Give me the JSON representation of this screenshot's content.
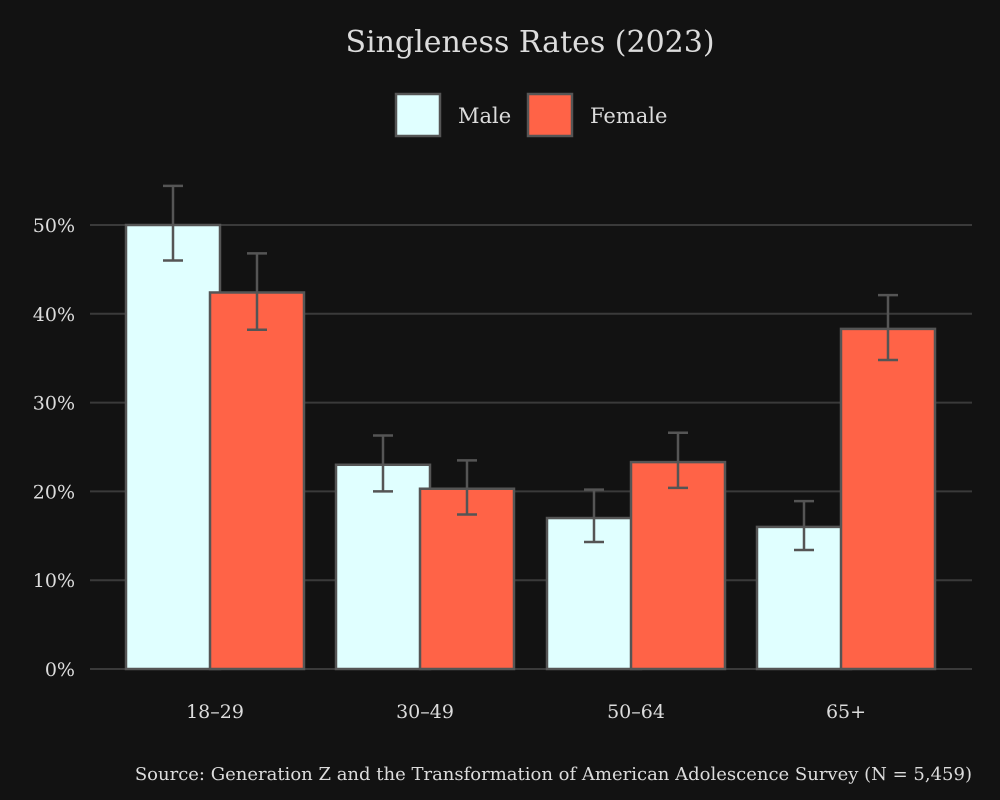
{
  "chart_data": {
    "type": "bar",
    "title": "Singleness Rates (2023)",
    "categories": [
      "18–29",
      "30–49",
      "50–64",
      "65+"
    ],
    "series": [
      {
        "name": "Male",
        "color": "#e0ffff",
        "values": [
          50,
          23,
          17,
          16
        ],
        "error_low": [
          46,
          20,
          14.3,
          13.4
        ],
        "error_high": [
          54.4,
          26.3,
          20.2,
          18.9
        ]
      },
      {
        "name": "Female",
        "color": "#ff6347",
        "values": [
          42.4,
          20.3,
          23.3,
          38.3
        ],
        "error_low": [
          38.2,
          17.4,
          20.4,
          34.8
        ],
        "error_high": [
          46.8,
          23.5,
          26.6,
          42.1
        ]
      }
    ],
    "ylim": [
      0,
      50
    ],
    "yticks": [
      0,
      10,
      20,
      30,
      40,
      50
    ],
    "ytick_labels": [
      "0%",
      "10%",
      "20%",
      "30%",
      "40%",
      "50%"
    ],
    "xlabel": "",
    "ylabel": "",
    "grid": true,
    "legend_position": "top-center",
    "source": "Source: Generation Z and the Transformation of American Adolescence Survey (N = 5,459)"
  },
  "colors": {
    "background": "#121212",
    "grid": "#3a3a3a",
    "bar_edge": "#555555",
    "error_bar": "#555555",
    "text": "#dcdcdc"
  }
}
